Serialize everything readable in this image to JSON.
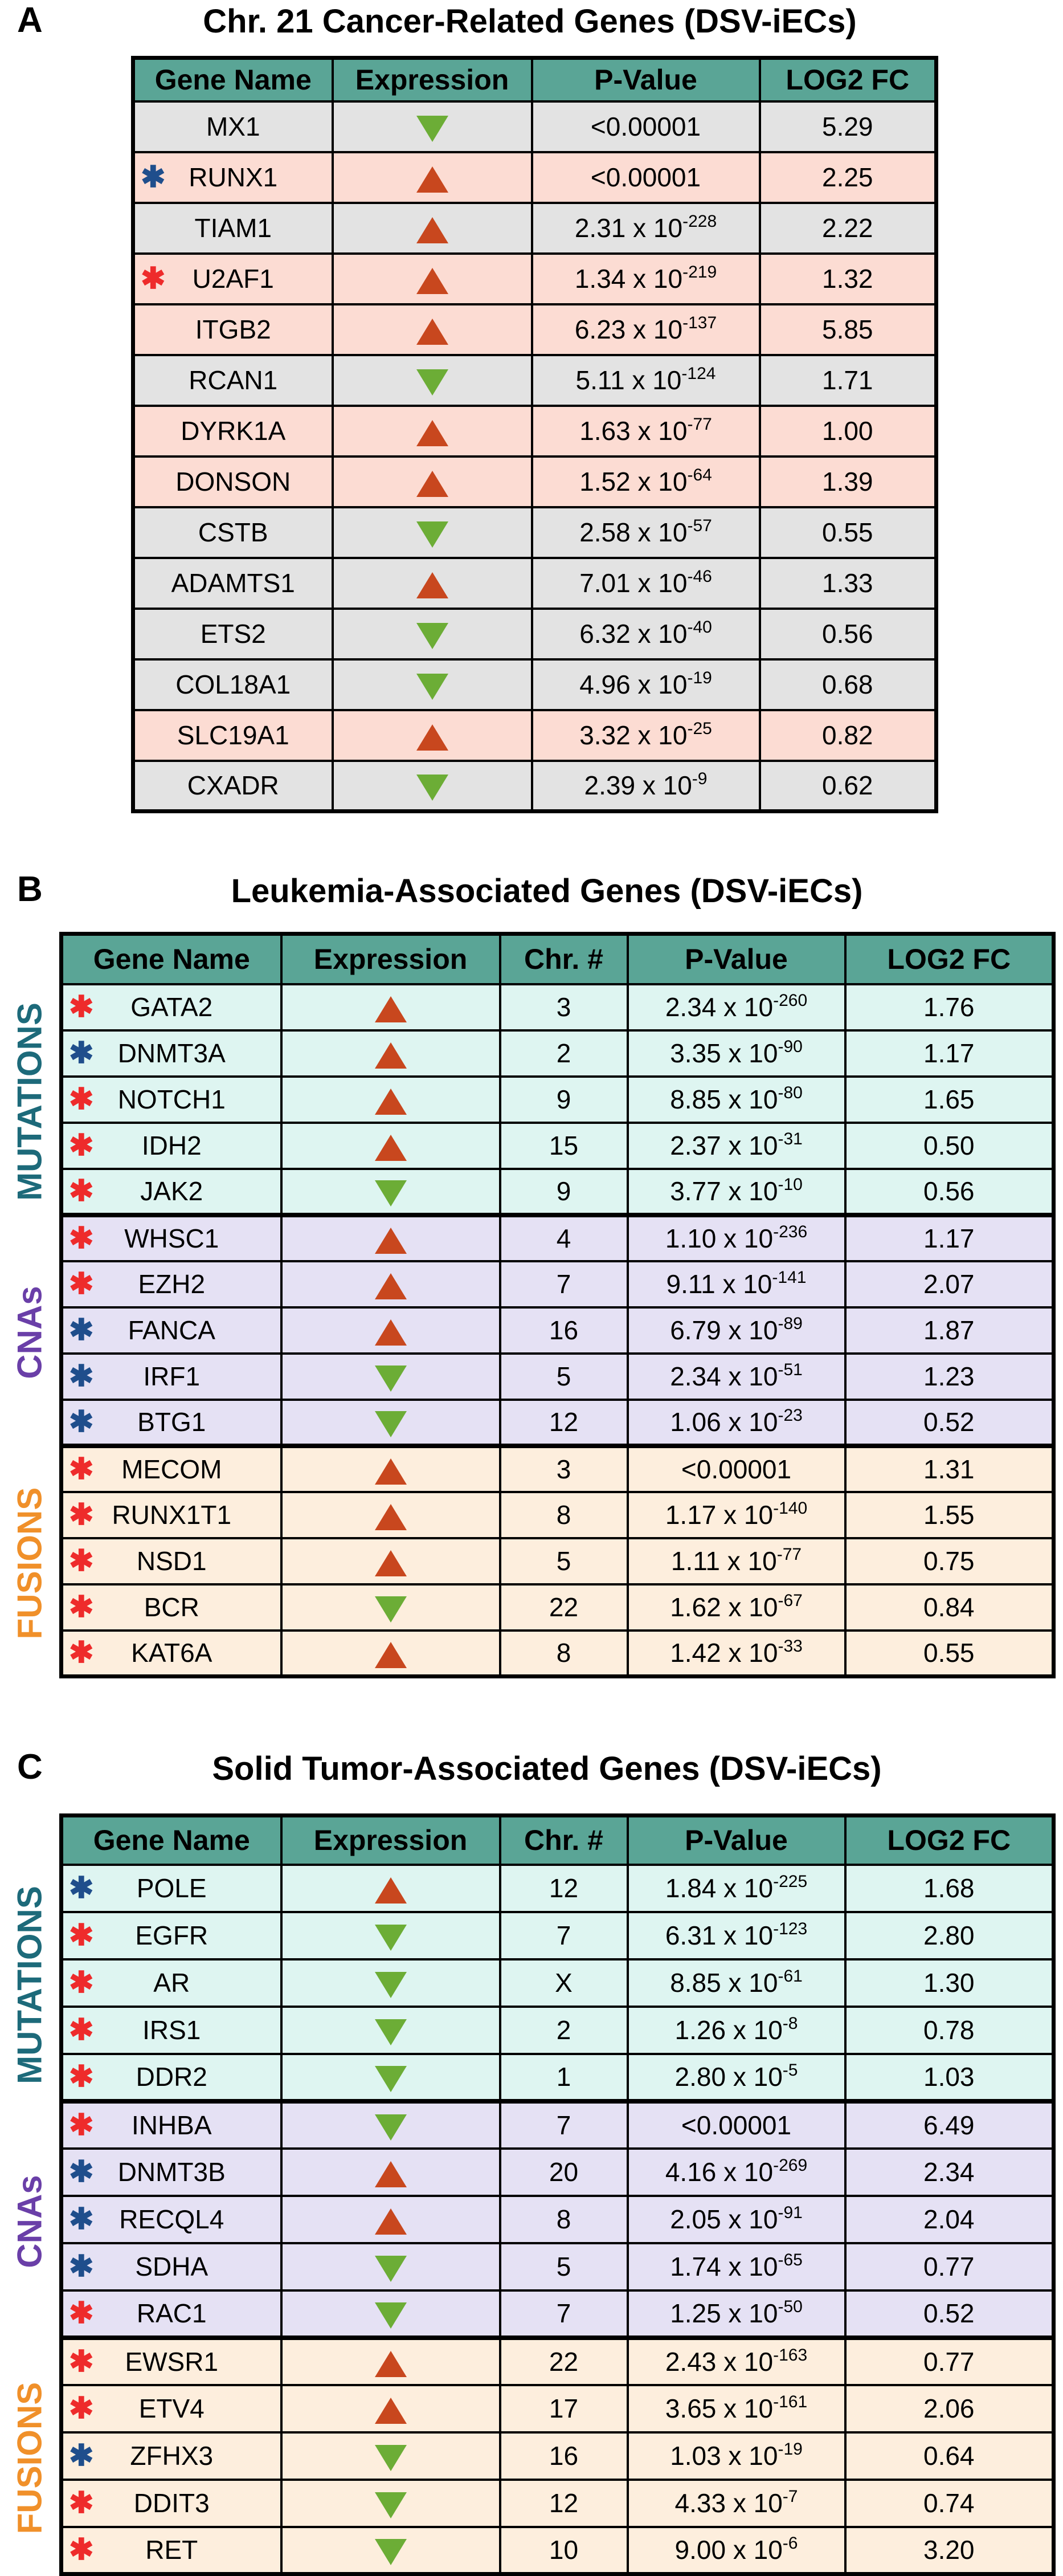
{
  "panel_a": {
    "letter": "A",
    "title": "Chr. 21 Cancer-Related Genes (DSV-iECs)",
    "headers": [
      "Gene Name",
      "Expression",
      "P-Value",
      "LOG2 FC"
    ],
    "rows": [
      {
        "gene": "MX1",
        "star": "",
        "expr": "down",
        "p_base": "<0.00001",
        "p_exp": "",
        "fc": "5.29",
        "bg": "gray"
      },
      {
        "gene": "RUNX1",
        "star": "blue",
        "expr": "up",
        "p_base": "<0.00001",
        "p_exp": "",
        "fc": "2.25",
        "bg": "pink"
      },
      {
        "gene": "TIAM1",
        "star": "",
        "expr": "up",
        "p_base": "2.31 x 10",
        "p_exp": "-228",
        "fc": "2.22",
        "bg": "gray"
      },
      {
        "gene": "U2AF1",
        "star": "red",
        "expr": "up",
        "p_base": "1.34 x 10",
        "p_exp": "-219",
        "fc": "1.32",
        "bg": "pink"
      },
      {
        "gene": "ITGB2",
        "star": "",
        "expr": "up",
        "p_base": "6.23 x 10",
        "p_exp": "-137",
        "fc": "5.85",
        "bg": "pink"
      },
      {
        "gene": "RCAN1",
        "star": "",
        "expr": "down",
        "p_base": "5.11 x 10",
        "p_exp": "-124",
        "fc": "1.71",
        "bg": "gray"
      },
      {
        "gene": "DYRK1A",
        "star": "",
        "expr": "up",
        "p_base": "1.63 x 10",
        "p_exp": "-77",
        "fc": "1.00",
        "bg": "pink"
      },
      {
        "gene": "DONSON",
        "star": "",
        "expr": "up",
        "p_base": "1.52 x 10",
        "p_exp": "-64",
        "fc": "1.39",
        "bg": "pink"
      },
      {
        "gene": "CSTB",
        "star": "",
        "expr": "down",
        "p_base": "2.58 x 10",
        "p_exp": "-57",
        "fc": "0.55",
        "bg": "gray"
      },
      {
        "gene": "ADAMTS1",
        "star": "",
        "expr": "up",
        "p_base": "7.01 x 10",
        "p_exp": "-46",
        "fc": "1.33",
        "bg": "gray"
      },
      {
        "gene": "ETS2",
        "star": "",
        "expr": "down",
        "p_base": "6.32 x 10",
        "p_exp": "-40",
        "fc": "0.56",
        "bg": "gray"
      },
      {
        "gene": "COL18A1",
        "star": "",
        "expr": "down",
        "p_base": "4.96 x 10",
        "p_exp": "-19",
        "fc": "0.68",
        "bg": "gray"
      },
      {
        "gene": "SLC19A1",
        "star": "",
        "expr": "up",
        "p_base": "3.32 x 10",
        "p_exp": "-25",
        "fc": "0.82",
        "bg": "pink"
      },
      {
        "gene": "CXADR",
        "star": "",
        "expr": "down",
        "p_base": "2.39 x 10",
        "p_exp": "-9",
        "fc": "0.62",
        "bg": "gray"
      }
    ]
  },
  "panel_b": {
    "letter": "B",
    "title": "Leukemia-Associated Genes (DSV-iECs)",
    "headers": [
      "Gene Name",
      "Expression",
      "Chr. #",
      "P-Value",
      "LOG2 FC"
    ],
    "groups": [
      {
        "label": "MUTATIONS",
        "color": "#1d6a7a",
        "bg": "mint",
        "rows": [
          {
            "gene": "GATA2",
            "star": "red",
            "expr": "up",
            "chr": "3",
            "p_base": "2.34 x 10",
            "p_exp": "-260",
            "fc": "1.76"
          },
          {
            "gene": "DNMT3A",
            "star": "blue",
            "expr": "up",
            "chr": "2",
            "p_base": "3.35 x 10",
            "p_exp": "-90",
            "fc": "1.17"
          },
          {
            "gene": "NOTCH1",
            "star": "red",
            "expr": "up",
            "chr": "9",
            "p_base": "8.85 x 10",
            "p_exp": "-80",
            "fc": "1.65"
          },
          {
            "gene": "IDH2",
            "star": "red",
            "expr": "up",
            "chr": "15",
            "p_base": "2.37 x 10",
            "p_exp": "-31",
            "fc": "0.50"
          },
          {
            "gene": "JAK2",
            "star": "red",
            "expr": "down",
            "chr": "9",
            "p_base": "3.77 x 10",
            "p_exp": "-10",
            "fc": "0.56"
          }
        ]
      },
      {
        "label": "CNAs",
        "color": "#6a3fa8",
        "bg": "lav",
        "rows": [
          {
            "gene": "WHSC1",
            "star": "red",
            "expr": "up",
            "chr": "4",
            "p_base": "1.10 x 10",
            "p_exp": "-236",
            "fc": "1.17"
          },
          {
            "gene": "EZH2",
            "star": "red",
            "expr": "up",
            "chr": "7",
            "p_base": "9.11 x 10",
            "p_exp": "-141",
            "fc": "2.07"
          },
          {
            "gene": "FANCA",
            "star": "blue",
            "expr": "up",
            "chr": "16",
            "p_base": "6.79 x 10",
            "p_exp": "-89",
            "fc": "1.87"
          },
          {
            "gene": "IRF1",
            "star": "blue",
            "expr": "down",
            "chr": "5",
            "p_base": "2.34 x 10",
            "p_exp": "-51",
            "fc": "1.23"
          },
          {
            "gene": "BTG1",
            "star": "blue",
            "expr": "down",
            "chr": "12",
            "p_base": "1.06 x 10",
            "p_exp": "-23",
            "fc": "0.52"
          }
        ]
      },
      {
        "label": "FUSIONS",
        "color": "#f0902a",
        "bg": "peach",
        "rows": [
          {
            "gene": "MECOM",
            "star": "red",
            "expr": "up",
            "chr": "3",
            "p_base": "<0.00001",
            "p_exp": "",
            "fc": "1.31"
          },
          {
            "gene": "RUNX1T1",
            "star": "red",
            "expr": "up",
            "chr": "8",
            "p_base": "1.17 x 10",
            "p_exp": "-140",
            "fc": "1.55"
          },
          {
            "gene": "NSD1",
            "star": "red",
            "expr": "up",
            "chr": "5",
            "p_base": "1.11 x 10",
            "p_exp": "-77",
            "fc": "0.75"
          },
          {
            "gene": "BCR",
            "star": "red",
            "expr": "down",
            "chr": "22",
            "p_base": "1.62 x 10",
            "p_exp": "-67",
            "fc": "0.84"
          },
          {
            "gene": "KAT6A",
            "star": "red",
            "expr": "up",
            "chr": "8",
            "p_base": "1.42 x 10",
            "p_exp": "-33",
            "fc": "0.55"
          }
        ]
      }
    ]
  },
  "panel_c": {
    "letter": "C",
    "title": "Solid Tumor-Associated Genes (DSV-iECs)",
    "headers": [
      "Gene Name",
      "Expression",
      "Chr. #",
      "P-Value",
      "LOG2 FC"
    ],
    "groups": [
      {
        "label": "MUTATIONS",
        "color": "#1d6a7a",
        "bg": "mint",
        "rows": [
          {
            "gene": "POLE",
            "star": "blue",
            "expr": "up",
            "chr": "12",
            "p_base": "1.84 x 10",
            "p_exp": "-225",
            "fc": "1.68"
          },
          {
            "gene": "EGFR",
            "star": "red",
            "expr": "down",
            "chr": "7",
            "p_base": "6.31 x 10",
            "p_exp": "-123",
            "fc": "2.80"
          },
          {
            "gene": "AR",
            "star": "red",
            "expr": "down",
            "chr": "X",
            "p_base": "8.85 x 10",
            "p_exp": "-61",
            "fc": "1.30"
          },
          {
            "gene": "IRS1",
            "star": "red",
            "expr": "down",
            "chr": "2",
            "p_base": "1.26 x 10",
            "p_exp": "-8",
            "fc": "0.78"
          },
          {
            "gene": "DDR2",
            "star": "red",
            "expr": "down",
            "chr": "1",
            "p_base": "2.80 x 10",
            "p_exp": "-5",
            "fc": "1.03"
          }
        ]
      },
      {
        "label": "CNAs",
        "color": "#6a3fa8",
        "bg": "lav",
        "rows": [
          {
            "gene": "INHBA",
            "star": "red",
            "expr": "down",
            "chr": "7",
            "p_base": "<0.00001",
            "p_exp": "",
            "fc": "6.49"
          },
          {
            "gene": "DNMT3B",
            "star": "blue",
            "expr": "up",
            "chr": "20",
            "p_base": "4.16 x 10",
            "p_exp": "-269",
            "fc": "2.34"
          },
          {
            "gene": "RECQL4",
            "star": "blue",
            "expr": "up",
            "chr": "8",
            "p_base": "2.05 x 10",
            "p_exp": "-91",
            "fc": "2.04"
          },
          {
            "gene": "SDHA",
            "star": "blue",
            "expr": "down",
            "chr": "5",
            "p_base": "1.74 x 10",
            "p_exp": "-65",
            "fc": "0.77"
          },
          {
            "gene": "RAC1",
            "star": "red",
            "expr": "down",
            "chr": "7",
            "p_base": "1.25 x 10",
            "p_exp": "-50",
            "fc": "0.52"
          }
        ]
      },
      {
        "label": "FUSIONS",
        "color": "#f0902a",
        "bg": "peach",
        "rows": [
          {
            "gene": "EWSR1",
            "star": "red",
            "expr": "up",
            "chr": "22",
            "p_base": "2.43 x 10",
            "p_exp": "-163",
            "fc": "0.77"
          },
          {
            "gene": "ETV4",
            "star": "red",
            "expr": "up",
            "chr": "17",
            "p_base": "3.65 x 10",
            "p_exp": "-161",
            "fc": "2.06"
          },
          {
            "gene": "ZFHX3",
            "star": "blue",
            "expr": "down",
            "chr": "16",
            "p_base": "1.03 x 10",
            "p_exp": "-19",
            "fc": "0.64"
          },
          {
            "gene": "DDIT3",
            "star": "red",
            "expr": "down",
            "chr": "12",
            "p_base": "4.33 x 10",
            "p_exp": "-7",
            "fc": "0.74"
          },
          {
            "gene": "RET",
            "star": "red",
            "expr": "down",
            "chr": "10",
            "p_base": "9.00 x 10",
            "p_exp": "-6",
            "fc": "3.20"
          }
        ]
      }
    ]
  }
}
